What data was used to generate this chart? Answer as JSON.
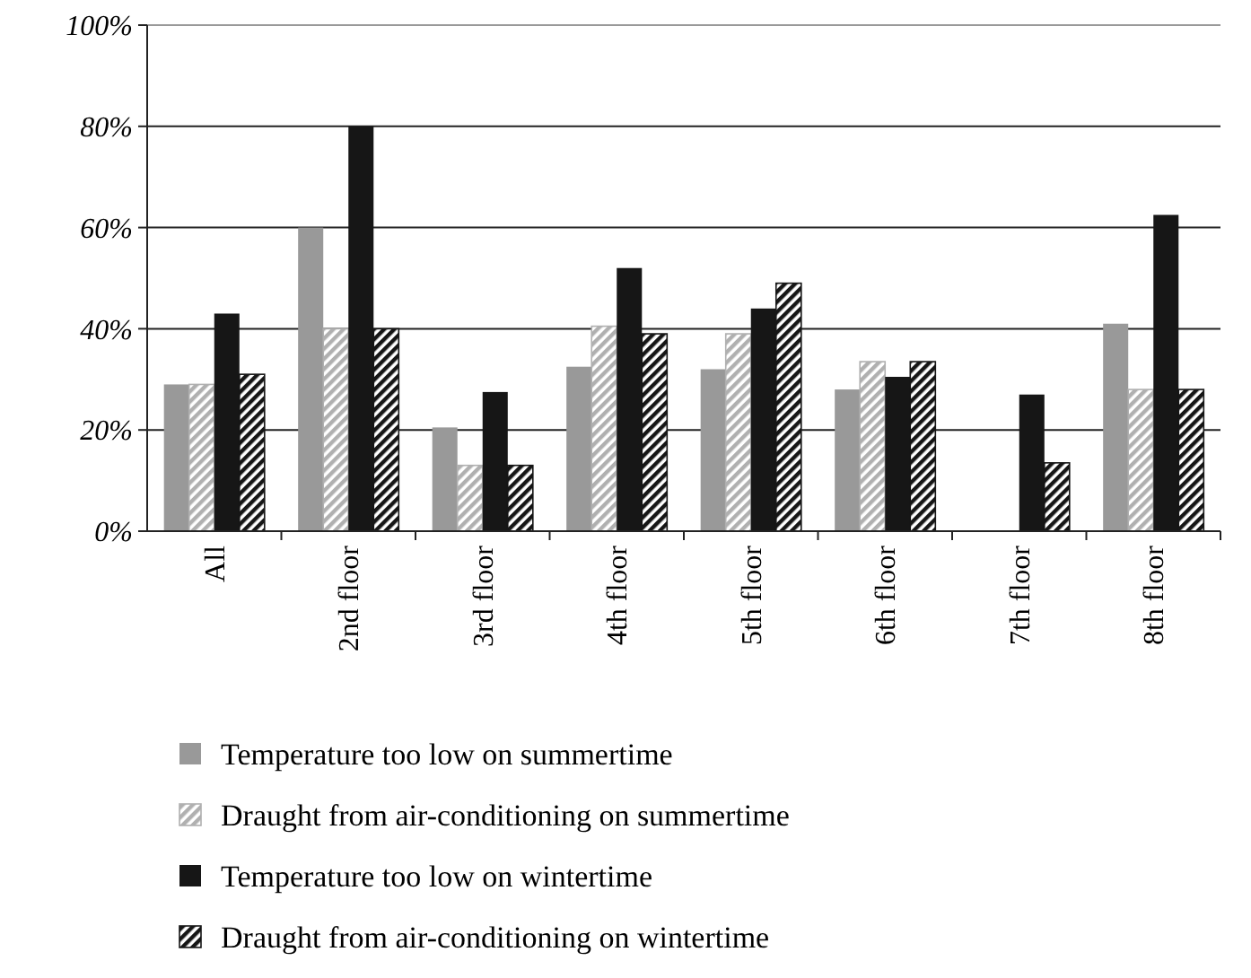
{
  "chart_data": {
    "type": "bar",
    "categories": [
      "All",
      "2nd floor",
      "3rd floor",
      "4th floor",
      "5th floor",
      "6th floor",
      "7th floor",
      "8th floor"
    ],
    "series": [
      {
        "name": "Temperature too low on summertime",
        "color": "#999999",
        "values": [
          29,
          60,
          20.5,
          32.5,
          32,
          28,
          0,
          41
        ]
      },
      {
        "name": "Draught from air-conditioning on summertime",
        "color": "#b0b0b0",
        "values": [
          29,
          40,
          13,
          40.5,
          39,
          33.5,
          0,
          28
        ]
      },
      {
        "name": "Temperature too low on wintertime",
        "color": "#161616",
        "values": [
          43,
          80,
          27.5,
          52,
          44,
          30.5,
          27,
          62.5
        ]
      },
      {
        "name": "Draught from air-conditioning on wintertime",
        "color": "#161616",
        "values": [
          31,
          40,
          13,
          39,
          49,
          33.5,
          13.5,
          28
        ]
      }
    ],
    "ylim": [
      0,
      100
    ],
    "yticks": [
      {
        "value": 0,
        "label": "0%"
      },
      {
        "value": 20,
        "label": "20%"
      },
      {
        "value": 40,
        "label": "40%"
      },
      {
        "value": 60,
        "label": "60%"
      },
      {
        "value": 80,
        "label": "80%"
      },
      {
        "value": 100,
        "label": "100%"
      }
    ],
    "grid": "y",
    "legend": "bottom"
  }
}
